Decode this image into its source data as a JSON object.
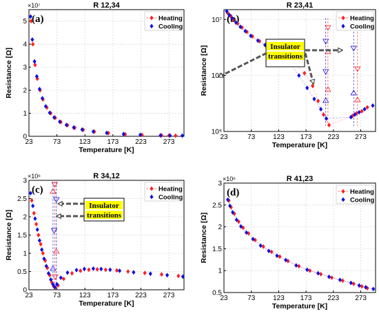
{
  "colors": {
    "heating": "#ff2020",
    "cooling": "#1010e0",
    "annotation_bg": "#ffff00"
  },
  "chart_data": [
    {
      "type": "scatter",
      "title": "R 12,34",
      "panel": "(a)",
      "xlabel": "Temperature [K]",
      "ylabel": "Resistance [Ω]",
      "xlim": [
        23,
        300
      ],
      "ylim": [
        0,
        55000000
      ],
      "yscale": "linear",
      "xticks": [
        23,
        73,
        123,
        173,
        223,
        273
      ],
      "yticks": [
        0,
        10000000,
        20000000,
        30000000,
        40000000,
        50000000
      ],
      "ytick_labels": [
        "0",
        "1",
        "2",
        "3",
        "4",
        "5"
      ],
      "multiplier": "×10⁷",
      "legend": "top-right",
      "grid": true,
      "series": [
        {
          "name": "Heating",
          "color": "red",
          "marker": "diamond",
          "x": [
            27,
            30,
            34,
            38,
            43,
            48,
            55,
            62,
            70,
            80,
            92,
            105,
            120,
            140,
            165,
            195,
            225,
            260,
            273,
            285
          ],
          "y": [
            50000000,
            40000000,
            31000000,
            25000000,
            20000000,
            16000000,
            12500000,
            10000000,
            8000000,
            6200000,
            4800000,
            3700000,
            2800000,
            2000000,
            1400000,
            900000,
            600000,
            380000,
            320000,
            280000
          ]
        },
        {
          "name": "Cooling",
          "color": "blue",
          "marker": "diamond",
          "x": [
            26,
            29,
            33,
            37,
            42,
            47,
            53,
            60,
            68,
            78,
            90,
            103,
            118,
            138,
            162,
            192,
            222,
            258,
            275,
            297
          ],
          "y": [
            52000000,
            42000000,
            32500000,
            26000000,
            20500000,
            16500000,
            13000000,
            10200000,
            8200000,
            6300000,
            4900000,
            3800000,
            2900000,
            2050000,
            1450000,
            950000,
            620000,
            390000,
            330000,
            260000
          ]
        }
      ]
    },
    {
      "type": "scatter",
      "title": "R 23,41",
      "panel": "(b)",
      "xlabel": "Temperature [K]",
      "ylabel": "Resistance [Ω]",
      "xlim": [
        23,
        300
      ],
      "ylim": [
        100000,
        15000000
      ],
      "yscale": "log",
      "xticks": [
        23,
        73,
        123,
        173,
        223,
        273
      ],
      "yticks": [
        100000,
        1000000,
        10000000
      ],
      "ytick_labels": [
        "10⁵",
        "10⁶",
        "10⁷"
      ],
      "legend": "top-right",
      "grid": true,
      "annotations": [
        {
          "text": "Insulator transitions"
        }
      ],
      "series": [
        {
          "name": "Heating",
          "color": "red",
          "marker": "diamond",
          "x": [
            30,
            35,
            40,
            48,
            56,
            65,
            75,
            88,
            100,
            115,
            130,
            150,
            170,
            185,
            195,
            205,
            215,
            258,
            265,
            275,
            285
          ],
          "y": [
            13000000,
            11500000,
            10000000,
            8500000,
            7200000,
            6000000,
            5000000,
            4100000,
            3400000,
            2800000,
            2300000,
            1700000,
            1100000,
            650000,
            350000,
            200000,
            130000,
            190000,
            210000,
            230000,
            270000
          ]
        },
        {
          "name": "Cooling",
          "color": "blue",
          "marker": "diamond",
          "x": [
            28,
            33,
            38,
            45,
            53,
            62,
            72,
            85,
            98,
            112,
            128,
            145,
            160,
            175,
            188,
            200,
            210,
            255,
            262,
            270,
            280,
            295
          ],
          "y": [
            14000000,
            12000000,
            10500000,
            8800000,
            7400000,
            6200000,
            5100000,
            4200000,
            3500000,
            2900000,
            2300000,
            1600000,
            1000000,
            600000,
            380000,
            250000,
            170000,
            180000,
            200000,
            220000,
            250000,
            290000
          ]
        }
      ]
    },
    {
      "type": "scatter",
      "title": "R 34,12",
      "panel": "(c)",
      "xlabel": "Temperature [K]",
      "ylabel": "Resistance [Ω]",
      "xlim": [
        23,
        300
      ],
      "ylim": [
        0,
        3000000
      ],
      "yscale": "linear",
      "xticks": [
        23,
        73,
        123,
        173,
        223,
        273
      ],
      "yticks": [
        0,
        500000,
        1000000,
        1500000,
        2000000,
        2500000,
        3000000
      ],
      "ytick_labels": [
        "0",
        "0.5",
        "1",
        "1.5",
        "2",
        "2.5",
        "3"
      ],
      "multiplier": "×10⁶",
      "legend": "top-right",
      "grid": true,
      "annotations": [
        {
          "text": "Insulator transitions"
        }
      ],
      "series": [
        {
          "name": "Heating",
          "color": "red",
          "marker": "diamond",
          "x": [
            28,
            32,
            36,
            40,
            44,
            48,
            52,
            56,
            60,
            64,
            67,
            70,
            75,
            85,
            100,
            115,
            130,
            145,
            160,
            180,
            200,
            230,
            260,
            290
          ],
          "y": [
            2450000,
            2100000,
            1800000,
            1500000,
            1250000,
            1000000,
            800000,
            600000,
            400000,
            200000,
            100000,
            60000,
            120000,
            300000,
            450000,
            520000,
            550000,
            560000,
            550000,
            530000,
            500000,
            460000,
            420000,
            380000
          ]
        },
        {
          "name": "Cooling",
          "color": "blue",
          "marker": "diamond",
          "x": [
            26,
            30,
            34,
            38,
            42,
            46,
            50,
            54,
            58,
            62,
            66,
            69,
            73,
            80,
            92,
            108,
            122,
            138,
            152,
            168,
            185,
            210,
            240,
            270,
            298
          ],
          "y": [
            2650000,
            2300000,
            1950000,
            1650000,
            1350000,
            1100000,
            850000,
            650000,
            450000,
            280000,
            150000,
            70000,
            150000,
            330000,
            470000,
            540000,
            570000,
            580000,
            570000,
            550000,
            520000,
            480000,
            440000,
            400000,
            360000
          ]
        }
      ]
    },
    {
      "type": "scatter",
      "title": "R 41,23",
      "panel": "(d)",
      "xlabel": "Temperature [K]",
      "ylabel": "Resistance [Ω]",
      "xlim": [
        23,
        300
      ],
      "ylim": [
        500000,
        3000000
      ],
      "yscale": "linear",
      "xticks": [
        23,
        73,
        123,
        173,
        223,
        273
      ],
      "yticks": [
        500000,
        1000000,
        1500000,
        2000000,
        2500000,
        3000000
      ],
      "ytick_labels": [
        "0.5",
        "1",
        "1.5",
        "2",
        "2.5",
        "3"
      ],
      "multiplier": "×10⁶",
      "legend": "top-right",
      "grid": true,
      "series": [
        {
          "name": "Heating",
          "color": "red",
          "marker": "diamond",
          "x": [
            32,
            36,
            42,
            50,
            58,
            68,
            80,
            95,
            110,
            125,
            140,
            160,
            180,
            200,
            220,
            240,
            260,
            275,
            285
          ],
          "y": [
            2600000,
            2450000,
            2300000,
            2120000,
            1980000,
            1850000,
            1700000,
            1550000,
            1430000,
            1320000,
            1220000,
            1100000,
            1000000,
            920000,
            840000,
            770000,
            700000,
            640000,
            600000
          ]
        },
        {
          "name": "Cooling",
          "color": "blue",
          "marker": "diamond",
          "x": [
            30,
            34,
            39,
            46,
            54,
            64,
            76,
            90,
            105,
            120,
            136,
            155,
            175,
            195,
            215,
            235,
            255,
            270,
            282,
            296
          ],
          "y": [
            2620000,
            2480000,
            2330000,
            2160000,
            2010000,
            1870000,
            1720000,
            1570000,
            1450000,
            1340000,
            1240000,
            1120000,
            1020000,
            940000,
            860000,
            790000,
            720000,
            660000,
            620000,
            580000
          ]
        }
      ]
    }
  ]
}
